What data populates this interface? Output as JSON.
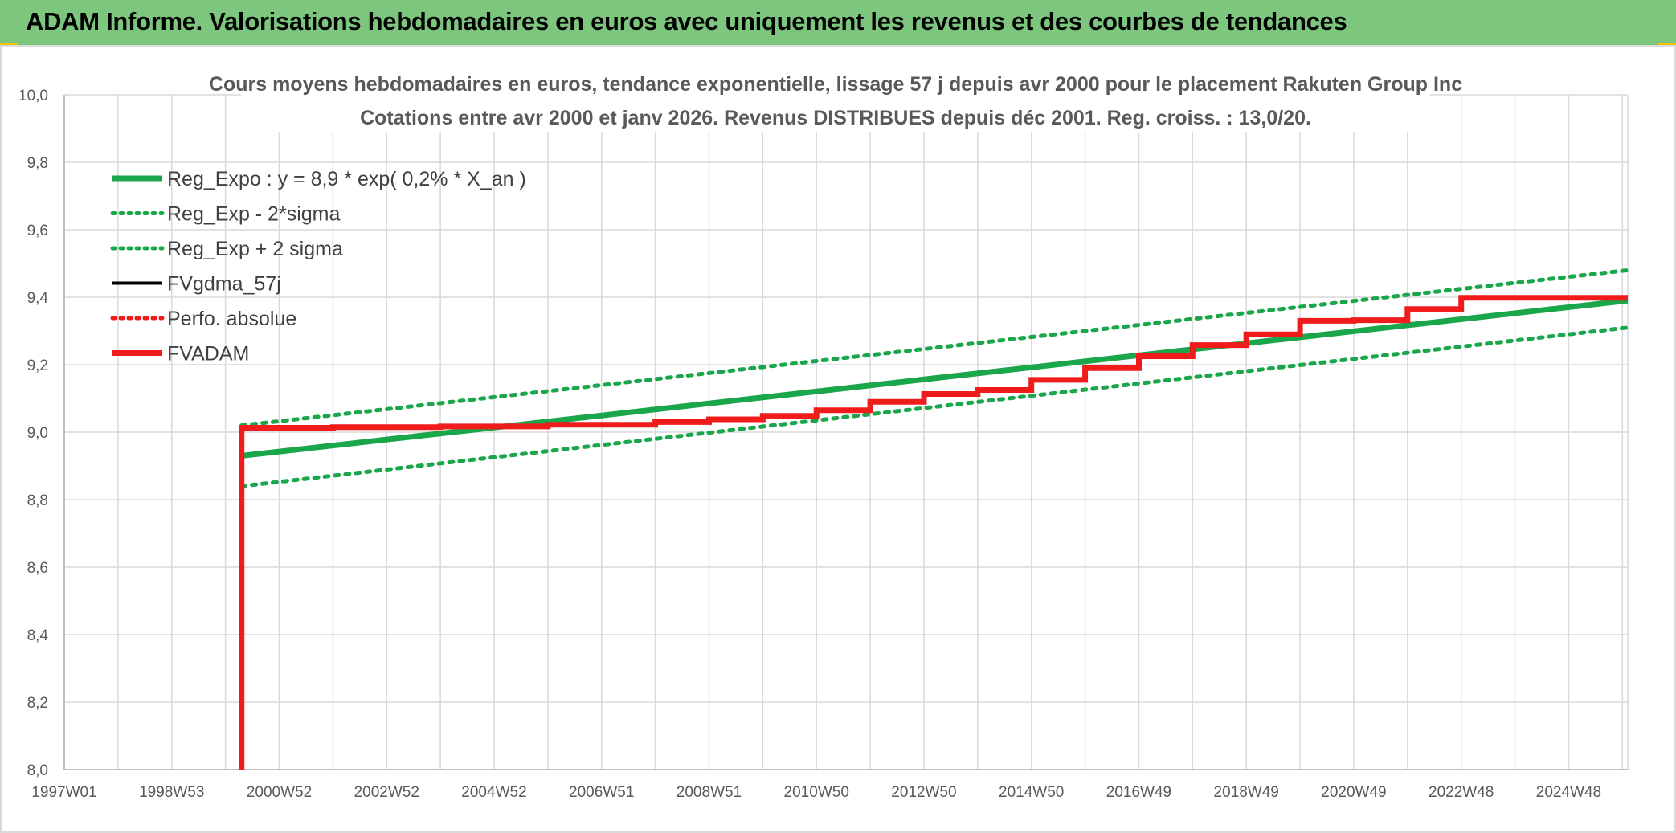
{
  "banner": {
    "title": "ADAM Informe. Valorisations hebdomadaires en euros avec uniquement les revenus et des courbes de tendances"
  },
  "colors": {
    "banner_bg": "#7dc67e",
    "accent_corner": "#f2c200",
    "grid": "#d9d9d9",
    "reg_green": "#1aa64a",
    "adam_red": "#f01c1c",
    "black": "#000000"
  },
  "chart_data": {
    "type": "line",
    "title": [
      "Cours moyens hebdomadaires en euros, tendance exponentielle, lissage 57 j depuis avr 2000 pour le placement Rakuten Group Inc",
      "Cotations entre avr 2000 et janv 2026. Revenus DISTRIBUES depuis déc 2001. Reg. croiss. : 13,0/20."
    ],
    "xlabel": "",
    "ylabel": "",
    "x_unit": "year (decimal)",
    "xlim": [
      1997.0,
      2026.1
    ],
    "ylim": [
      8.0,
      10.0
    ],
    "y_ticks": [
      "10,0",
      "9,8",
      "9,6",
      "9,4",
      "9,2",
      "9,0",
      "8,8",
      "8,6",
      "8,4",
      "8,2",
      "8,0"
    ],
    "y_tick_values": [
      10.0,
      9.8,
      9.6,
      9.4,
      9.2,
      9.0,
      8.8,
      8.6,
      8.4,
      8.2,
      8.0
    ],
    "x_ticks": [
      "1997W01",
      "1998W53",
      "2000W52",
      "2002W52",
      "2004W52",
      "2006W51",
      "2008W51",
      "2010W50",
      "2012W50",
      "2014W50",
      "2016W49",
      "2018W49",
      "2020W49",
      "2022W48",
      "2024W48"
    ],
    "x_tick_values": [
      1997.0,
      1999.0,
      2001.0,
      2003.0,
      2005.0,
      2007.0,
      2009.0,
      2011.0,
      2013.0,
      2015.0,
      2017.0,
      2019.0,
      2021.0,
      2023.0,
      2025.0
    ],
    "legend_position": "top-left",
    "series": [
      {
        "name": "Reg_Expo : y = 8,9 * exp( 0,2% *  X_an )",
        "style": "solid-thick",
        "color": "#1aa64a",
        "points": [
          [
            2000.3,
            8.93
          ],
          [
            2026.1,
            9.39
          ]
        ]
      },
      {
        "name": "Reg_Exp - 2*sigma",
        "style": "dotted",
        "color": "#1aa64a",
        "points": [
          [
            2000.3,
            8.84
          ],
          [
            2026.1,
            9.31
          ]
        ]
      },
      {
        "name": "Reg_Exp + 2 sigma",
        "style": "dotted",
        "color": "#1aa64a",
        "points": [
          [
            2000.3,
            9.02
          ],
          [
            2026.1,
            9.48
          ]
        ]
      },
      {
        "name": "FVgdma_57j",
        "style": "solid",
        "color": "#000000",
        "points": [
          [
            2000.3,
            9.013
          ],
          [
            2002.0,
            9.015
          ],
          [
            2004.0,
            9.017
          ],
          [
            2006.0,
            9.022
          ],
          [
            2008.0,
            9.03
          ],
          [
            2009.0,
            9.038
          ],
          [
            2010.0,
            9.048
          ],
          [
            2011.0,
            9.065
          ],
          [
            2012.0,
            9.09
          ],
          [
            2013.0,
            9.113
          ],
          [
            2014.0,
            9.125
          ],
          [
            2015.0,
            9.155
          ],
          [
            2016.0,
            9.19
          ],
          [
            2017.0,
            9.225
          ],
          [
            2018.0,
            9.258
          ],
          [
            2019.0,
            9.29
          ],
          [
            2020.0,
            9.33
          ],
          [
            2021.0,
            9.332
          ],
          [
            2022.0,
            9.365
          ],
          [
            2023.0,
            9.398
          ],
          [
            2026.1,
            9.398
          ]
        ]
      },
      {
        "name": "Perfo. absolue",
        "style": "dotted",
        "color": "#f01c1c",
        "points": [
          [
            2000.3,
            9.013
          ],
          [
            2026.1,
            9.398
          ]
        ]
      },
      {
        "name": "FVADAM",
        "style": "solid-thick",
        "color": "#f01c1c",
        "points": [
          [
            2000.3,
            8.0
          ],
          [
            2000.3,
            9.013
          ],
          [
            2002.0,
            9.015
          ],
          [
            2004.0,
            9.017
          ],
          [
            2006.0,
            9.022
          ],
          [
            2008.0,
            9.03
          ],
          [
            2009.0,
            9.038
          ],
          [
            2010.0,
            9.048
          ],
          [
            2011.0,
            9.065
          ],
          [
            2012.0,
            9.09
          ],
          [
            2013.0,
            9.113
          ],
          [
            2014.0,
            9.125
          ],
          [
            2015.0,
            9.155
          ],
          [
            2016.0,
            9.19
          ],
          [
            2017.0,
            9.225
          ],
          [
            2018.0,
            9.258
          ],
          [
            2019.0,
            9.29
          ],
          [
            2020.0,
            9.33
          ],
          [
            2021.0,
            9.332
          ],
          [
            2022.0,
            9.365
          ],
          [
            2023.0,
            9.398
          ],
          [
            2026.1,
            9.398
          ]
        ]
      }
    ]
  }
}
